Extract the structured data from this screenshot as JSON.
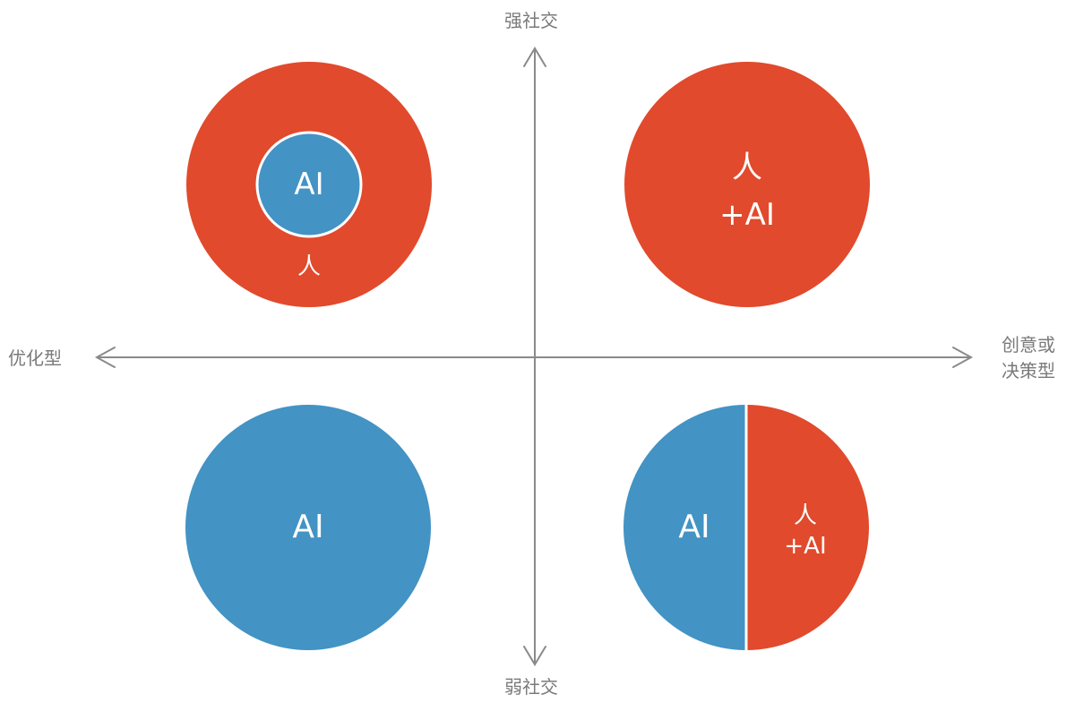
{
  "axes": {
    "top_label": "强社交",
    "bottom_label": "弱社交",
    "left_label": "优化型",
    "right_label_line1": "创意或",
    "right_label_line2": "决策型"
  },
  "quadrants": {
    "top_left": {
      "outer_label": "人",
      "inner_label": "AI"
    },
    "top_right": {
      "label_line1": "人",
      "label_line2": "+AI"
    },
    "bottom_left": {
      "label": "AI"
    },
    "bottom_right": {
      "left_label": "AI",
      "right_label_line1": "人",
      "right_label_line2": "+AI"
    }
  },
  "colors": {
    "human_red": "#e14a2c",
    "ai_blue": "#4393c4",
    "axis_gray": "#8a8a8a",
    "label_gray": "#7a7a7a"
  }
}
